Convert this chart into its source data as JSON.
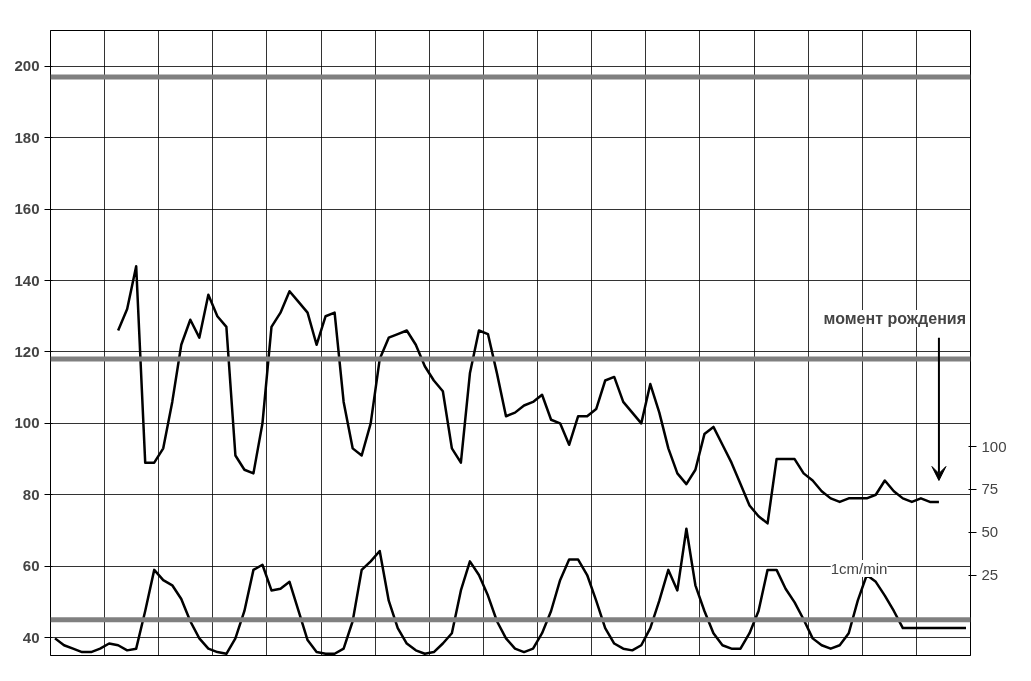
{
  "chart_data": {
    "type": "line",
    "categories": [
      null,
      null,
      null,
      null,
      null,
      null,
      null,
      null,
      null,
      null,
      null,
      null,
      null,
      null,
      null,
      null,
      null,
      null,
      null,
      null,
      null,
      null,
      null,
      null,
      null,
      null,
      null,
      null,
      null,
      null,
      null,
      null,
      null,
      null,
      null,
      null,
      null,
      null,
      null,
      null,
      null,
      null,
      null,
      null,
      null,
      null,
      null,
      null,
      null,
      null,
      null,
      null,
      null,
      null,
      null,
      null,
      null,
      null,
      null,
      null,
      null,
      null,
      null,
      null,
      null,
      null,
      null,
      null,
      null,
      null,
      null,
      null,
      null,
      null,
      null,
      null,
      null,
      null,
      null,
      null,
      null,
      null,
      null,
      null,
      null,
      null,
      null,
      null,
      null,
      null,
      null,
      null,
      null,
      null,
      null,
      null,
      null,
      null,
      null,
      null,
      null,
      null
    ],
    "series": [
      {
        "color": "#000000",
        "values": [
          null,
          null,
          null,
          null,
          null,
          null,
          null,
          126,
          132,
          144,
          89,
          89,
          93,
          106,
          122,
          129,
          124,
          136,
          130,
          127,
          91,
          87,
          86,
          100,
          127,
          131,
          137,
          134,
          131,
          122,
          130,
          131,
          106,
          93,
          91,
          100,
          118,
          124,
          125,
          126,
          122,
          116,
          112,
          109,
          93,
          89,
          114,
          126,
          125,
          114,
          102,
          103,
          105,
          106,
          108,
          101,
          100,
          94,
          102,
          102,
          104,
          112,
          113,
          106,
          103,
          100,
          111,
          103,
          93,
          86,
          83,
          87,
          97,
          99,
          94,
          89,
          83,
          77,
          74,
          72,
          90,
          90,
          90,
          86,
          84,
          81,
          79,
          78,
          79,
          79,
          79,
          80,
          84,
          81,
          79,
          78,
          79,
          78,
          78,
          null,
          null,
          null
        ]
      },
      {
        "color": "#000000",
        "axis": "y2",
        "values": [
          -12,
          -16,
          -18,
          -20,
          -20,
          -18,
          -15,
          -16,
          -19,
          -18,
          4,
          28,
          22,
          19,
          11,
          -2,
          -12,
          -18,
          -20,
          -21,
          -12,
          4,
          28,
          31,
          16,
          17,
          21,
          4,
          -13,
          -20,
          -21,
          -21,
          -18,
          -2,
          28,
          33,
          39,
          10,
          -6,
          -15,
          -19,
          -21,
          -20,
          -15,
          -9,
          16,
          33,
          25,
          13,
          -2,
          -12,
          -18,
          -20,
          -18,
          -9,
          4,
          22,
          34,
          34,
          25,
          10,
          -6,
          -15,
          -18,
          -19,
          -16,
          -6,
          10,
          28,
          16,
          52,
          19,
          4,
          -9,
          -16,
          -18,
          -18,
          -9,
          4,
          28,
          28,
          17,
          9,
          -1,
          -12,
          -16,
          -18,
          -16,
          -9,
          10,
          25,
          21,
          13,
          4,
          -6,
          -6,
          -6,
          -6,
          -6,
          -6,
          -6,
          -6
        ]
      }
    ],
    "ylim": [
      35,
      210
    ],
    "yticks": [
      40,
      60,
      80,
      100,
      120,
      140,
      160,
      180,
      200
    ],
    "y2lim": [
      -22,
      343
    ],
    "y2ticks": [
      25,
      50,
      75,
      100
    ],
    "ref_lines": [
      {
        "axis": "y",
        "value": 197,
        "color": "#808080"
      },
      {
        "axis": "y",
        "value": 118,
        "color": "#808080"
      },
      {
        "axis": "y",
        "value": 45,
        "color": "#808080"
      }
    ],
    "annotations": [
      "момент рождения",
      "1cm/min"
    ],
    "grid": true
  }
}
